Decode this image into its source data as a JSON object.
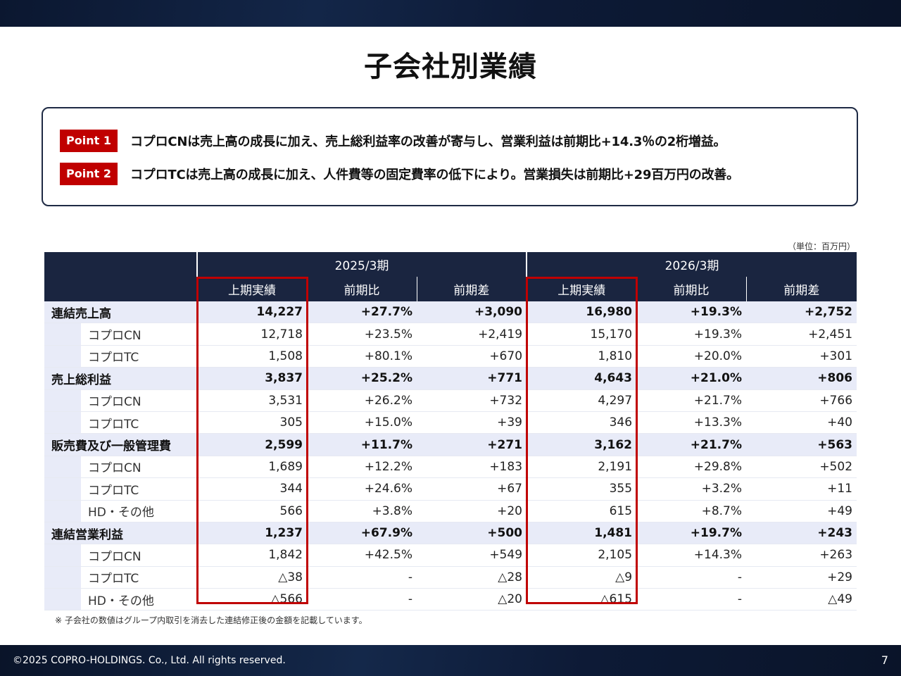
{
  "title": "子会社別業績",
  "points": [
    {
      "badge": "Point 1",
      "text": "コプロCNは売上高の成長に加え、売上総利益率の改善が寄与し、営業利益は前期比+14.3％の2桁増益。"
    },
    {
      "badge": "Point 2",
      "text": "コプロTCは売上高の成長に加え、人件費等の固定費率の低下により。営業損失は前期比+29百万円の改善。"
    }
  ],
  "unit": "（単位：百万円）",
  "table": {
    "periods": [
      "2025/3期",
      "2026/3期"
    ],
    "columns": [
      "上期実績",
      "前期比",
      "前期差",
      "上期実績",
      "前期比",
      "前期差"
    ],
    "rows": [
      {
        "type": "main",
        "label": "連結売上高",
        "values": [
          "14,227",
          "+27.7%",
          "+3,090",
          "16,980",
          "+19.3%",
          "+2,752"
        ]
      },
      {
        "type": "sub",
        "label": "コプロCN",
        "values": [
          "12,718",
          "+23.5%",
          "+2,419",
          "15,170",
          "+19.3%",
          "+2,451"
        ]
      },
      {
        "type": "sub",
        "label": "コプロTC",
        "values": [
          "1,508",
          "+80.1%",
          "+670",
          "1,810",
          "+20.0%",
          "+301"
        ]
      },
      {
        "type": "main",
        "label": "売上総利益",
        "values": [
          "3,837",
          "+25.2%",
          "+771",
          "4,643",
          "+21.0%",
          "+806"
        ]
      },
      {
        "type": "sub",
        "label": "コプロCN",
        "values": [
          "3,531",
          "+26.2%",
          "+732",
          "4,297",
          "+21.7%",
          "+766"
        ]
      },
      {
        "type": "sub",
        "label": "コプロTC",
        "values": [
          "305",
          "+15.0%",
          "+39",
          "346",
          "+13.3%",
          "+40"
        ]
      },
      {
        "type": "main",
        "label": "販売費及び一般管理費",
        "values": [
          "2,599",
          "+11.7%",
          "+271",
          "3,162",
          "+21.7%",
          "+563"
        ]
      },
      {
        "type": "sub",
        "label": "コプロCN",
        "values": [
          "1,689",
          "+12.2%",
          "+183",
          "2,191",
          "+29.8%",
          "+502"
        ]
      },
      {
        "type": "sub",
        "label": "コプロTC",
        "values": [
          "344",
          "+24.6%",
          "+67",
          "355",
          "+3.2%",
          "+11"
        ]
      },
      {
        "type": "sub",
        "label": "HD・その他",
        "values": [
          "566",
          "+3.8%",
          "+20",
          "615",
          "+8.7%",
          "+49"
        ]
      },
      {
        "type": "main",
        "label": "連結営業利益",
        "values": [
          "1,237",
          "+67.9%",
          "+500",
          "1,481",
          "+19.7%",
          "+243"
        ]
      },
      {
        "type": "sub",
        "label": "コプロCN",
        "values": [
          "1,842",
          "+42.5%",
          "+549",
          "2,105",
          "+14.3%",
          "+263"
        ]
      },
      {
        "type": "sub",
        "label": "コプロTC",
        "values": [
          "△38",
          "-",
          "△28",
          "△9",
          "-",
          "+29"
        ]
      },
      {
        "type": "sub",
        "label": "HD・その他",
        "values": [
          "△566",
          "-",
          "△20",
          "△615",
          "-",
          "△49"
        ]
      }
    ]
  },
  "note": "※ 子会社の数値はグループ内取引を消去した連結修正後の金額を記載しています。",
  "footer": {
    "copyright": "©2025 COPRO-HOLDINGS. Co., Ltd. All rights reserved.",
    "page": "7"
  },
  "colors": {
    "accent": "#c00000",
    "header_bg": "#1a2540",
    "main_row_bg": "#e8ebf8"
  }
}
